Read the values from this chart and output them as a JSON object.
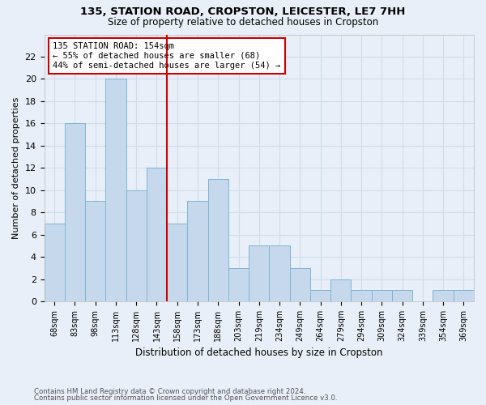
{
  "title1": "135, STATION ROAD, CROPSTON, LEICESTER, LE7 7HH",
  "title2": "Size of property relative to detached houses in Cropston",
  "xlabel": "Distribution of detached houses by size in Cropston",
  "ylabel": "Number of detached properties",
  "footnote1": "Contains HM Land Registry data © Crown copyright and database right 2024.",
  "footnote2": "Contains public sector information licensed under the Open Government Licence v3.0.",
  "bin_labels": [
    "68sqm",
    "83sqm",
    "98sqm",
    "113sqm",
    "128sqm",
    "143sqm",
    "158sqm",
    "173sqm",
    "188sqm",
    "203sqm",
    "219sqm",
    "234sqm",
    "249sqm",
    "264sqm",
    "279sqm",
    "294sqm",
    "309sqm",
    "324sqm",
    "339sqm",
    "354sqm",
    "369sqm"
  ],
  "bar_heights": [
    7,
    16,
    9,
    20,
    10,
    12,
    7,
    9,
    11,
    3,
    5,
    5,
    3,
    1,
    2,
    1,
    1,
    1,
    0,
    1,
    1
  ],
  "bar_color": "#c6d9ec",
  "bar_edgecolor": "#7fb3d3",
  "grid_color": "#d0dce8",
  "bg_color": "#e8eff8",
  "property_line_x": 5.5,
  "annotation_text": "135 STATION ROAD: 154sqm\n← 55% of detached houses are smaller (68)\n44% of semi-detached houses are larger (54) →",
  "annotation_box_color": "#cc0000",
  "ylim": [
    0,
    24
  ],
  "ytick_max": 22
}
